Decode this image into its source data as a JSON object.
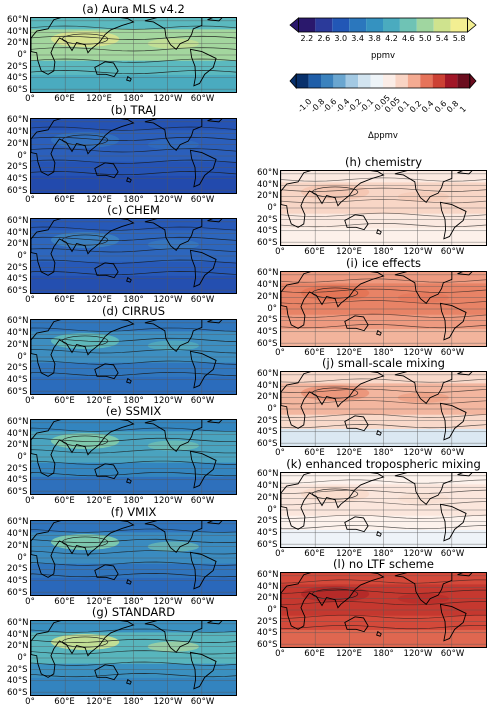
{
  "colorbar_abs": {
    "ticks": [
      "2.2",
      "2.6",
      "3.0",
      "3.4",
      "3.8",
      "4.2",
      "4.6",
      "5.0",
      "5.4",
      "5.8"
    ],
    "unit": "ppmv",
    "colors": [
      "#2a186c",
      "#2b3a9a",
      "#2257b6",
      "#2b77bd",
      "#3592c0",
      "#4aabbf",
      "#6fc3b5",
      "#a0d6a0",
      "#cfe38e",
      "#f3ef92"
    ]
  },
  "colorbar_diff": {
    "ticks": [
      "-1.0",
      "-0.8",
      "-0.6",
      "-0.4",
      "-0.2",
      "-0.1",
      "-0.05",
      "0.05",
      "0.1",
      "0.2",
      "0.4",
      "0.6",
      "0.8",
      "1"
    ],
    "unit": "Δppmv",
    "colors": [
      "#08306b",
      "#1f5ea8",
      "#3b82bd",
      "#6aa6d0",
      "#a3c9e3",
      "#d2e4f0",
      "#eef4f8",
      "#fbede7",
      "#f9d4c4",
      "#f4ab92",
      "#e6735a",
      "#cc4134",
      "#a11627",
      "#6b0d1e"
    ]
  },
  "lat_ticks": [
    "60°N",
    "40°N",
    "20°N",
    "0°",
    "20°S",
    "40°S",
    "60°S"
  ],
  "lon_ticks": [
    "0°",
    "60°E",
    "120°E",
    "180°",
    "120°W",
    "60°W"
  ],
  "panels": [
    {
      "id": "a",
      "title": "(a) Aura MLS v4.2",
      "kind": "abs",
      "base": "#5bb9bf",
      "tropics": "#a3d69e",
      "core": "#d6e28f",
      "south": "#4aabbf"
    },
    {
      "id": "b",
      "title": "(b) TRAJ",
      "kind": "abs",
      "base": "#2553b4",
      "tropics": "#2b5fbb",
      "core": "#3170bf",
      "south": "#224aad"
    },
    {
      "id": "c",
      "title": "(c) CHEM",
      "kind": "abs",
      "base": "#2759b8",
      "tropics": "#2d66bd",
      "core": "#3a7fc0",
      "south": "#244fb0"
    },
    {
      "id": "d",
      "title": "(d) CIRRUS",
      "kind": "abs",
      "base": "#3076bd",
      "tropics": "#3d8ec0",
      "core": "#5eb8bb",
      "south": "#2b6cbc"
    },
    {
      "id": "e",
      "title": "(e) SSMIX",
      "kind": "abs",
      "base": "#3385bf",
      "tropics": "#4aa3bf",
      "core": "#7ec9ad",
      "south": "#2e70bc"
    },
    {
      "id": "f",
      "title": "(f) VMIX",
      "kind": "abs",
      "base": "#2f74bd",
      "tropics": "#3a8bc0",
      "core": "#7cc8ae",
      "south": "#2a68bb"
    },
    {
      "id": "g",
      "title": "(g) STANDARD",
      "kind": "abs",
      "base": "#3a90c0",
      "tropics": "#58b5bd",
      "core": "#c2de95",
      "south": "#3384bf"
    },
    {
      "id": "h",
      "title": "(h) chemistry",
      "kind": "diff",
      "base": "#fbe9e0",
      "tropics": "#f8d6c6",
      "core": "#f5c7b3",
      "south": "#fdf1ea"
    },
    {
      "id": "i",
      "title": "(i) ice effects",
      "kind": "diff",
      "base": "#ee9a80",
      "tropics": "#e88366",
      "core": "#e47556",
      "south": "#f2b49c"
    },
    {
      "id": "j",
      "title": "(j) small-scale mixing",
      "kind": "diff",
      "base": "#f9d9ca",
      "tropics": "#f3b69f",
      "core": "#ec977c",
      "south": "#dbe8f2"
    },
    {
      "id": "k",
      "title": "(k) enhanced tropospheric mixing",
      "kind": "diff",
      "base": "#fdf2ec",
      "tropics": "#fbe6dc",
      "core": "#f9dccd",
      "south": "#eef3f8"
    },
    {
      "id": "l",
      "title": "(l) no LTF scheme",
      "kind": "diff",
      "base": "#d4493a",
      "tropics": "#c5382f",
      "core": "#b52a28",
      "south": "#df6750"
    }
  ]
}
